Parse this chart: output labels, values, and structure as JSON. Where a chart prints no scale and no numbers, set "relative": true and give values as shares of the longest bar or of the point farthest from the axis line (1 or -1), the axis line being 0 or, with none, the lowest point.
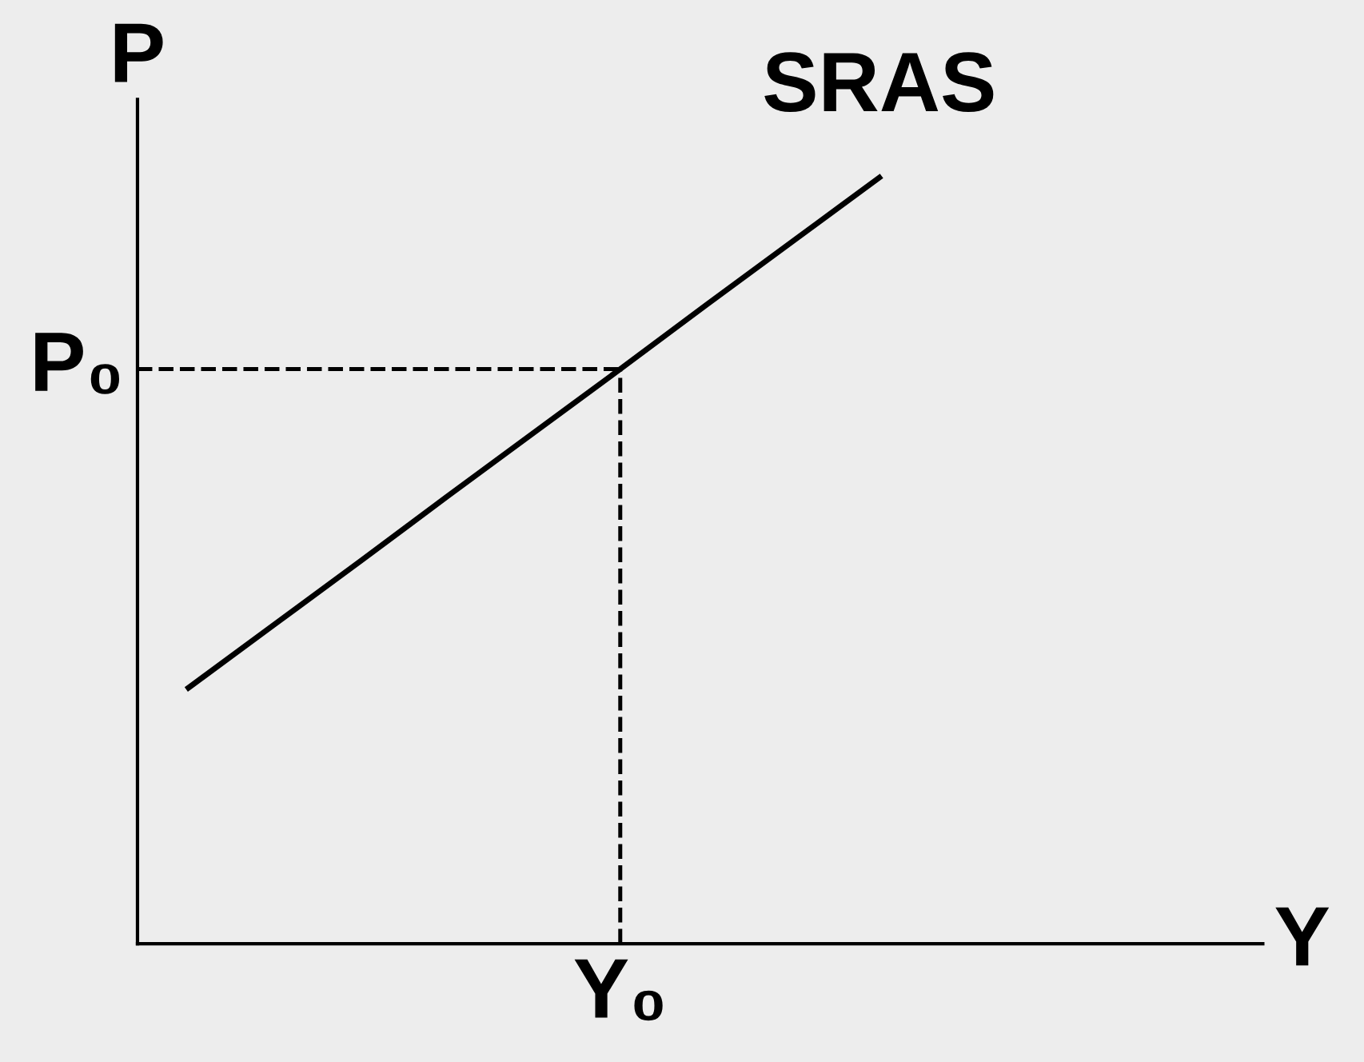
{
  "chart_data": {
    "type": "line",
    "relative": true,
    "xlabel": "Y",
    "ylabel": "P",
    "categories": [
      null,
      null,
      null,
      null,
      null,
      null,
      null,
      null,
      null
    ],
    "series": [
      {
        "name": "SRAS",
        "color": "#000000",
        "values": [
          0.334,
          0.417,
          0.5,
          0.584,
          0.667,
          0.75,
          0.834,
          0.917,
          1.0
        ]
      }
    ],
    "ref_lines": [
      {
        "axis": "y",
        "value": 0.75,
        "label": "P₀",
        "color": "#000000",
        "line_style": "dashed"
      }
    ],
    "annotations": [
      "Y₀"
    ],
    "marker": "none",
    "line_style": "solid"
  }
}
